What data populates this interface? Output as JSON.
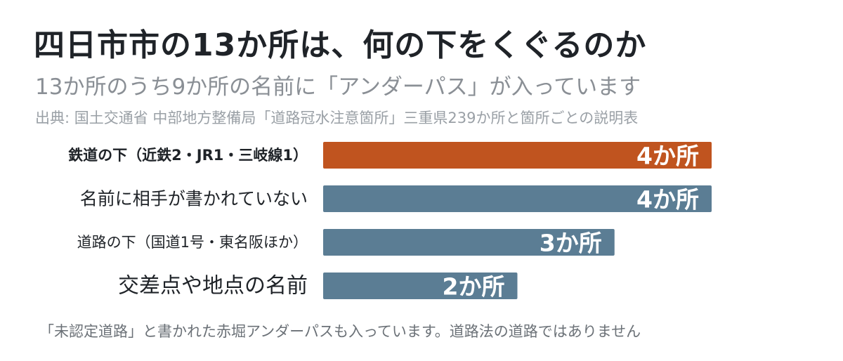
{
  "header": {
    "title": "四日市市の13か所は、何の下をくぐるのか",
    "subtitle": "13か所のうち9か所の名前に「アンダーパス」が入っています",
    "source": "出典: 国土交通省 中部地方整備局「道路冠水注意箇所」三重県239か所と箇所ごとの説明表"
  },
  "footnote": "「未認定道路」と書かれた赤堀アンダーパスも入っています。道路法の道路ではありません",
  "colors": {
    "highlight": "#c0541f",
    "default": "#5b7d94",
    "value_label": "#ffffff",
    "category_label": "#1f2328"
  },
  "chart_data": {
    "type": "bar",
    "orientation": "horizontal",
    "categories": [
      "鉄道の下（近鉄2・JR1・三岐線1）",
      "名前に相手が書かれていない",
      "道路の下（国道1号・東名阪ほか）",
      "交差点や地点の名前"
    ],
    "values": [
      4,
      4,
      3,
      2
    ],
    "value_labels": [
      "4か所",
      "4か所",
      "3か所",
      "2か所"
    ],
    "highlight_index": 0,
    "xlim": [
      0,
      4
    ],
    "grid": false,
    "legend": "none"
  }
}
